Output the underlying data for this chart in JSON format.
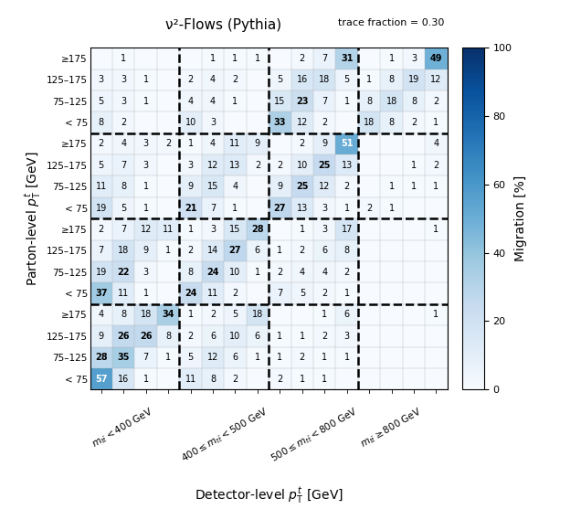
{
  "title": "ν²-Flows (Pythia)",
  "trace_fraction_text": "trace fraction = 0.30",
  "xlabel": "Detector-level $p_\\mathrm{T}^t$ [GeV]",
  "ylabel": "Parton-level $p_\\mathrm{T}^t$ [GeV]",
  "colorbar_label": "Migration [%]",
  "vmin": 0,
  "vmax": 100,
  "matrix": [
    [
      0,
      1,
      0,
      0,
      0,
      1,
      1,
      1,
      0,
      2,
      7,
      31,
      0,
      1,
      3,
      49
    ],
    [
      3,
      3,
      1,
      0,
      2,
      4,
      2,
      0,
      5,
      16,
      18,
      5,
      1,
      8,
      19,
      12
    ],
    [
      5,
      3,
      1,
      0,
      4,
      4,
      1,
      0,
      15,
      23,
      7,
      1,
      8,
      18,
      8,
      2
    ],
    [
      8,
      2,
      0,
      0,
      10,
      3,
      0,
      0,
      33,
      12,
      2,
      0,
      18,
      8,
      2,
      1
    ],
    [
      2,
      4,
      3,
      2,
      1,
      4,
      11,
      9,
      0,
      2,
      9,
      51,
      0,
      0,
      0,
      4
    ],
    [
      5,
      7,
      3,
      0,
      3,
      12,
      13,
      2,
      2,
      10,
      25,
      13,
      0,
      0,
      1,
      2
    ],
    [
      11,
      8,
      1,
      0,
      9,
      15,
      4,
      0,
      9,
      25,
      12,
      2,
      0,
      1,
      1,
      1
    ],
    [
      19,
      5,
      1,
      0,
      21,
      7,
      1,
      0,
      27,
      13,
      3,
      1,
      2,
      1,
      0,
      0
    ],
    [
      2,
      7,
      12,
      11,
      1,
      3,
      15,
      28,
      0,
      1,
      3,
      17,
      0,
      0,
      0,
      1
    ],
    [
      7,
      18,
      9,
      1,
      2,
      14,
      27,
      6,
      1,
      2,
      6,
      8,
      0,
      0,
      0,
      0
    ],
    [
      19,
      22,
      3,
      0,
      8,
      24,
      10,
      1,
      2,
      4,
      4,
      2,
      0,
      0,
      0,
      0
    ],
    [
      37,
      11,
      1,
      0,
      24,
      11,
      2,
      0,
      7,
      5,
      2,
      1,
      0,
      0,
      0,
      0
    ],
    [
      4,
      8,
      18,
      34,
      1,
      2,
      5,
      18,
      0,
      0,
      1,
      6,
      0,
      0,
      0,
      1
    ],
    [
      9,
      26,
      26,
      8,
      2,
      6,
      10,
      6,
      1,
      1,
      2,
      3,
      0,
      0,
      0,
      0
    ],
    [
      28,
      35,
      7,
      1,
      5,
      12,
      6,
      1,
      1,
      2,
      1,
      1,
      0,
      0,
      0,
      0
    ],
    [
      57,
      16,
      1,
      0,
      11,
      8,
      2,
      0,
      2,
      1,
      1,
      0,
      0,
      0,
      0,
      0
    ]
  ],
  "row_labels": [
    "≥175",
    "125–175",
    "75–125",
    "< 75",
    "≥175",
    "125–175",
    "75–125",
    "< 75",
    "≥175",
    "125–175",
    "75–125",
    "< 75",
    "≥175",
    "125–175",
    "75–125",
    "< 75"
  ],
  "col_group_labels": [
    "$m_{t\\bar{t}} < 400$ GeV",
    "$400 \\leq m_{t\\bar{t}} < 500$ GeV",
    "$500 \\leq m_{t\\bar{t}} < 800$ GeV",
    "$m_{t\\bar{t}} \\geq 800$ GeV"
  ],
  "colormap": "Blues",
  "text_threshold": 50,
  "bold_threshold": 20,
  "fontsize_cell": 7.0,
  "fontsize_tick": 7.5,
  "fontsize_grouplabel": 7.5,
  "fontsize_axlabel": 10,
  "fontsize_title": 11,
  "fontsize_cbar": 8
}
